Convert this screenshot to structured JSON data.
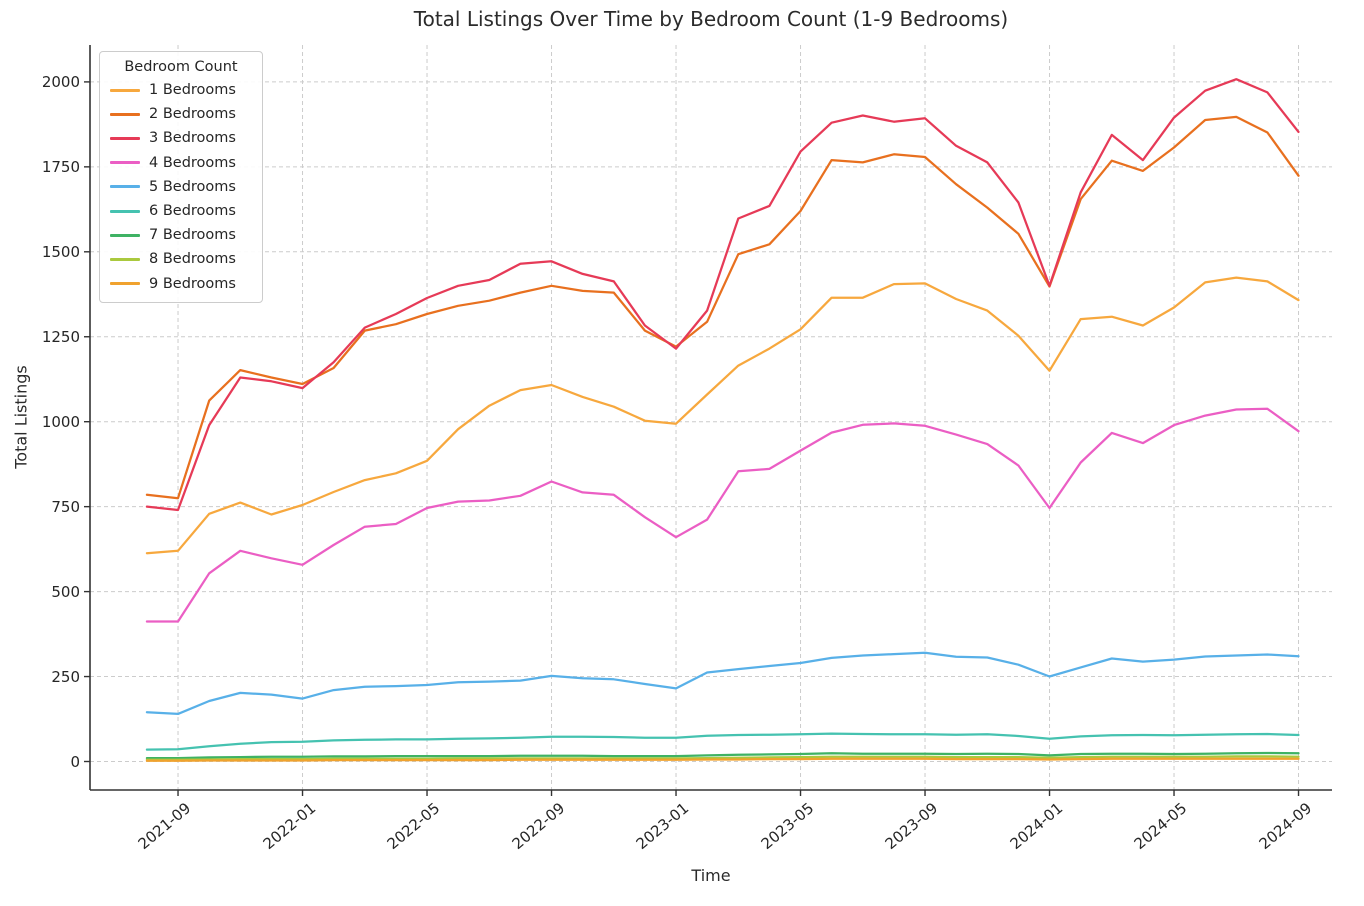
{
  "chart_data": {
    "type": "line",
    "title": "Total Listings Over Time by Bedroom Count (1-9 Bedrooms)",
    "xlabel": "Time",
    "ylabel": "Total Listings",
    "legend_title": "Bedroom Count",
    "legend_position": "upper left",
    "grid": "dashed",
    "grid_color": "#cccccc",
    "spine_color": "#333333",
    "text_color": "#262626",
    "background_color": "#ffffff",
    "ylim": [
      0,
      2100
    ],
    "y_ticks": [
      0,
      250,
      500,
      750,
      1000,
      1250,
      1500,
      1750,
      2000
    ],
    "x_tick_labels": [
      "2021-09",
      "2022-01",
      "2022-05",
      "2022-09",
      "2023-01",
      "2023-05",
      "2023-09",
      "2024-01",
      "2024-05",
      "2024-09"
    ],
    "x": [
      "2021-08",
      "2021-09",
      "2021-10",
      "2021-11",
      "2021-12",
      "2022-01",
      "2022-02",
      "2022-03",
      "2022-04",
      "2022-05",
      "2022-06",
      "2022-07",
      "2022-08",
      "2022-09",
      "2022-10",
      "2022-11",
      "2022-12",
      "2023-01",
      "2023-02",
      "2023-03",
      "2023-04",
      "2023-05",
      "2023-06",
      "2023-07",
      "2023-08",
      "2023-09",
      "2023-10",
      "2023-11",
      "2023-12",
      "2024-01",
      "2024-02",
      "2024-03",
      "2024-04",
      "2024-05",
      "2024-06",
      "2024-07",
      "2024-08",
      "2024-09"
    ],
    "series": [
      {
        "name": "1 Bedrooms",
        "color": "#f7a83e",
        "values": [
          613,
          620,
          729,
          762,
          727,
          755,
          793,
          828,
          848,
          885,
          978,
          1047,
          1093,
          1108,
          1073,
          1044,
          1003,
          994,
          1080,
          1165,
          1215,
          1272,
          1365,
          1365,
          1405,
          1407,
          1361,
          1327,
          1253,
          1150,
          1302,
          1309,
          1283,
          1336,
          1410,
          1424,
          1413,
          1358
        ]
      },
      {
        "name": "2 Bedrooms",
        "color": "#e8701f",
        "values": [
          785,
          775,
          1062,
          1152,
          1130,
          1111,
          1158,
          1268,
          1287,
          1317,
          1341,
          1356,
          1380,
          1400,
          1385,
          1380,
          1268,
          1221,
          1294,
          1493,
          1522,
          1620,
          1770,
          1763,
          1787,
          1779,
          1699,
          1630,
          1553,
          1398,
          1655,
          1768,
          1738,
          1807,
          1888,
          1897,
          1851,
          1724
        ]
      },
      {
        "name": "3 Bedrooms",
        "color": "#e63a57",
        "values": [
          750,
          740,
          990,
          1130,
          1119,
          1099,
          1175,
          1277,
          1317,
          1364,
          1400,
          1417,
          1465,
          1472,
          1435,
          1413,
          1283,
          1215,
          1327,
          1598,
          1635,
          1795,
          1880,
          1901,
          1883,
          1893,
          1812,
          1763,
          1645,
          1400,
          1675,
          1844,
          1770,
          1895,
          1974,
          2008,
          1969,
          1853
        ]
      },
      {
        "name": "4 Bedrooms",
        "color": "#eb5ec4",
        "values": [
          412,
          412,
          554,
          620,
          598,
          579,
          637,
          691,
          699,
          746,
          765,
          768,
          782,
          824,
          792,
          785,
          719,
          660,
          712,
          854,
          861,
          915,
          968,
          991,
          995,
          988,
          962,
          934,
          871,
          746,
          880,
          967,
          937,
          990,
          1018,
          1036,
          1038,
          972
        ]
      },
      {
        "name": "5 Bedrooms",
        "color": "#58b0e8",
        "values": [
          145,
          140,
          178,
          202,
          197,
          185,
          210,
          220,
          222,
          225,
          233,
          235,
          238,
          252,
          245,
          242,
          228,
          215,
          262,
          272,
          281,
          290,
          305,
          312,
          316,
          320,
          308,
          306,
          285,
          250,
          277,
          303,
          294,
          300,
          309,
          312,
          315,
          310
        ]
      },
      {
        "name": "6 Bedrooms",
        "color": "#45c2b0",
        "values": [
          35,
          36,
          45,
          52,
          57,
          58,
          62,
          64,
          65,
          65,
          67,
          68,
          70,
          73,
          73,
          72,
          70,
          70,
          76,
          78,
          79,
          80,
          82,
          81,
          80,
          80,
          79,
          80,
          75,
          67,
          74,
          77,
          78,
          77,
          79,
          80,
          81,
          78
        ]
      },
      {
        "name": "7 Bedrooms",
        "color": "#3fb264",
        "values": [
          10,
          10,
          12,
          13,
          14,
          14,
          15,
          15,
          16,
          16,
          16,
          16,
          17,
          17,
          17,
          16,
          16,
          16,
          18,
          20,
          21,
          22,
          24,
          23,
          23,
          23,
          22,
          23,
          22,
          18,
          22,
          23,
          23,
          22,
          23,
          24,
          25,
          24
        ]
      },
      {
        "name": "8 Bedrooms",
        "color": "#aac93e",
        "values": [
          5,
          5,
          6,
          7,
          7,
          7,
          8,
          8,
          8,
          8,
          9,
          9,
          9,
          9,
          9,
          9,
          9,
          9,
          10,
          11,
          12,
          13,
          14,
          14,
          14,
          14,
          13,
          13,
          13,
          11,
          13,
          14,
          14,
          14,
          14,
          15,
          15,
          14
        ]
      },
      {
        "name": "9 Bedrooms",
        "color": "#f0a22e",
        "values": [
          2,
          2,
          3,
          3,
          3,
          3,
          4,
          4,
          4,
          4,
          4,
          4,
          5,
          5,
          5,
          5,
          5,
          5,
          6,
          6,
          7,
          7,
          8,
          8,
          8,
          8,
          7,
          7,
          7,
          6,
          7,
          8,
          8,
          8,
          8,
          8,
          8,
          8
        ]
      }
    ]
  }
}
